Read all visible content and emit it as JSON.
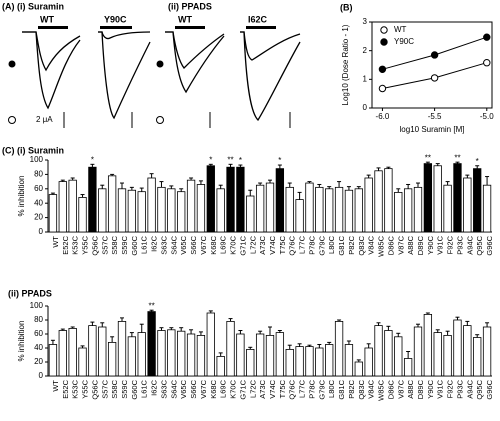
{
  "panel_a": {
    "title": "(A) (i) Suramin",
    "subtitle": "(ii) PPADS",
    "traces": [
      {
        "label": "WT"
      },
      {
        "label": "Y90C"
      },
      {
        "label": "WT"
      },
      {
        "label": "I62C"
      }
    ],
    "scale_label": "2 μA"
  },
  "chart_data": [
    {
      "type": "scatter",
      "title": "(B)",
      "x_label": "log10 Suramin [M]",
      "y_label": "Log10 (Dose Ratio - 1)",
      "xlim": [
        -6.1,
        -4.95
      ],
      "xticks": [
        {
          "value": -6,
          "label": "-6.0"
        },
        -5.5,
        {
          "value": -5,
          "label": "-5.0"
        }
      ],
      "ylim": [
        0,
        3
      ],
      "yticks": [
        0,
        1,
        2,
        3
      ],
      "legend": "upper left",
      "x": [
        -6,
        -5.5,
        -5
      ],
      "series": [
        {
          "name": "WT",
          "color": "#000000",
          "filled": false,
          "values": [
            0.68,
            1.05,
            1.58
          ]
        },
        {
          "name": "Y90C",
          "color": "#000000",
          "filled": true,
          "values": [
            1.35,
            1.85,
            2.47
          ]
        }
      ]
    },
    {
      "type": "bar",
      "title": "(C) (i) Suramin",
      "y_label": "% inhibition",
      "ylim": [
        0,
        100
      ],
      "yticks": [
        0,
        20,
        40,
        60,
        80,
        100
      ],
      "categories": [
        "WT",
        "E52C",
        "K53C",
        "Y55C",
        "Q56C",
        "S57C",
        "S58C",
        "S59C",
        "G60C",
        "L61C",
        "I62C",
        "S63C",
        "S64C",
        "V65C",
        "S66C",
        "V67C",
        "K68C",
        "L69C",
        "K70C",
        "G71C",
        "L72C",
        "A73C",
        "V74C",
        "T75C",
        "Q76C",
        "L77C",
        "P78C",
        "G79C",
        "L80C",
        "G81C",
        "P82C",
        "Q83C",
        "V84C",
        "W85C",
        "D86C",
        "V87C",
        "A88C",
        "D89C",
        "Y90C",
        "V91C",
        "F92C",
        "P93C",
        "A94C",
        "Q95C",
        "G96C"
      ],
      "values": [
        52,
        70,
        72,
        48,
        90,
        60,
        78,
        60,
        58,
        56,
        75,
        62,
        60,
        56,
        72,
        66,
        92,
        60,
        90,
        90,
        50,
        65,
        68,
        88,
        62,
        45,
        68,
        62,
        60,
        62,
        58,
        60,
        75,
        85,
        88,
        55,
        60,
        62,
        95,
        92,
        65,
        95,
        75,
        88,
        65
      ],
      "errors": [
        2,
        2,
        3,
        4,
        4,
        5,
        2,
        8,
        4,
        5,
        6,
        8,
        4,
        4,
        3,
        5,
        2,
        5,
        4,
        3,
        8,
        3,
        4,
        5,
        6,
        10,
        2,
        4,
        3,
        8,
        5,
        3,
        4,
        4,
        2,
        5,
        6,
        6,
        2,
        3,
        5,
        2,
        4,
        4,
        12
      ],
      "colors": [
        "#fff",
        "#fff",
        "#fff",
        "#fff",
        "#000",
        "#fff",
        "#fff",
        "#fff",
        "#fff",
        "#fff",
        "#fff",
        "#fff",
        "#fff",
        "#fff",
        "#fff",
        "#fff",
        "#000",
        "#fff",
        "#000",
        "#000",
        "#fff",
        "#fff",
        "#fff",
        "#000",
        "#fff",
        "#fff",
        "#fff",
        "#fff",
        "#fff",
        "#fff",
        "#fff",
        "#fff",
        "#fff",
        "#fff",
        "#fff",
        "#fff",
        "#fff",
        "#fff",
        "#000",
        "#fff",
        "#fff",
        "#000",
        "#fff",
        "#000",
        "#fff"
      ],
      "annotations": [
        {
          "category": "Q56C",
          "text": "*"
        },
        {
          "category": "K68C",
          "text": "*"
        },
        {
          "category": "K70C",
          "text": "**"
        },
        {
          "category": "G71C",
          "text": "*"
        },
        {
          "category": "T75C",
          "text": "*"
        },
        {
          "category": "Y90C",
          "text": "**"
        },
        {
          "category": "P93C",
          "text": "**"
        },
        {
          "category": "Q95C",
          "text": "*"
        }
      ]
    },
    {
      "type": "bar",
      "title": "(ii) PPADS",
      "y_label": "% inhibition",
      "ylim": [
        0,
        100
      ],
      "yticks": [
        0,
        20,
        40,
        60,
        80,
        100
      ],
      "categories": [
        "WT",
        "E52C",
        "K53C",
        "Y55C",
        "Q56C",
        "S57C",
        "S58C",
        "S59C",
        "G60C",
        "L61C",
        "I62C",
        "S63C",
        "S64C",
        "V65C",
        "S66C",
        "V67C",
        "K68C",
        "L69C",
        "K70C",
        "G71C",
        "L72C",
        "A73C",
        "V74C",
        "T75C",
        "Q76C",
        "L77C",
        "P78C",
        "G79C",
        "L80C",
        "G81C",
        "P82C",
        "Q83C",
        "V84C",
        "W85C",
        "D86C",
        "V87C",
        "A88C",
        "D89C",
        "Y90C",
        "V91C",
        "F92C",
        "P93C",
        "A94C",
        "Q95C",
        "G96C"
      ],
      "values": [
        45,
        65,
        68,
        40,
        72,
        70,
        48,
        78,
        56,
        62,
        92,
        65,
        66,
        64,
        60,
        58,
        90,
        28,
        78,
        60,
        38,
        60,
        58,
        62,
        38,
        42,
        42,
        40,
        45,
        78,
        45,
        20,
        40,
        72,
        65,
        56,
        25,
        70,
        88,
        62,
        58,
        80,
        72,
        55,
        70
      ],
      "errors": [
        6,
        2,
        2,
        3,
        5,
        6,
        8,
        5,
        6,
        12,
        2,
        4,
        3,
        5,
        6,
        5,
        3,
        5,
        4,
        5,
        3,
        4,
        12,
        3,
        6,
        4,
        2,
        5,
        3,
        2,
        5,
        3,
        6,
        4,
        6,
        5,
        10,
        4,
        2,
        4,
        6,
        4,
        6,
        4,
        6
      ],
      "colors": [
        "#fff",
        "#fff",
        "#fff",
        "#fff",
        "#fff",
        "#fff",
        "#fff",
        "#fff",
        "#fff",
        "#fff",
        "#000",
        "#fff",
        "#fff",
        "#fff",
        "#fff",
        "#fff",
        "#fff",
        "#fff",
        "#fff",
        "#fff",
        "#fff",
        "#fff",
        "#fff",
        "#fff",
        "#fff",
        "#fff",
        "#fff",
        "#fff",
        "#fff",
        "#fff",
        "#fff",
        "#fff",
        "#fff",
        "#fff",
        "#fff",
        "#fff",
        "#fff",
        "#fff",
        "#fff",
        "#fff",
        "#fff",
        "#fff",
        "#fff",
        "#fff",
        "#fff"
      ],
      "annotations": [
        {
          "category": "I62C",
          "text": "**"
        }
      ]
    }
  ]
}
